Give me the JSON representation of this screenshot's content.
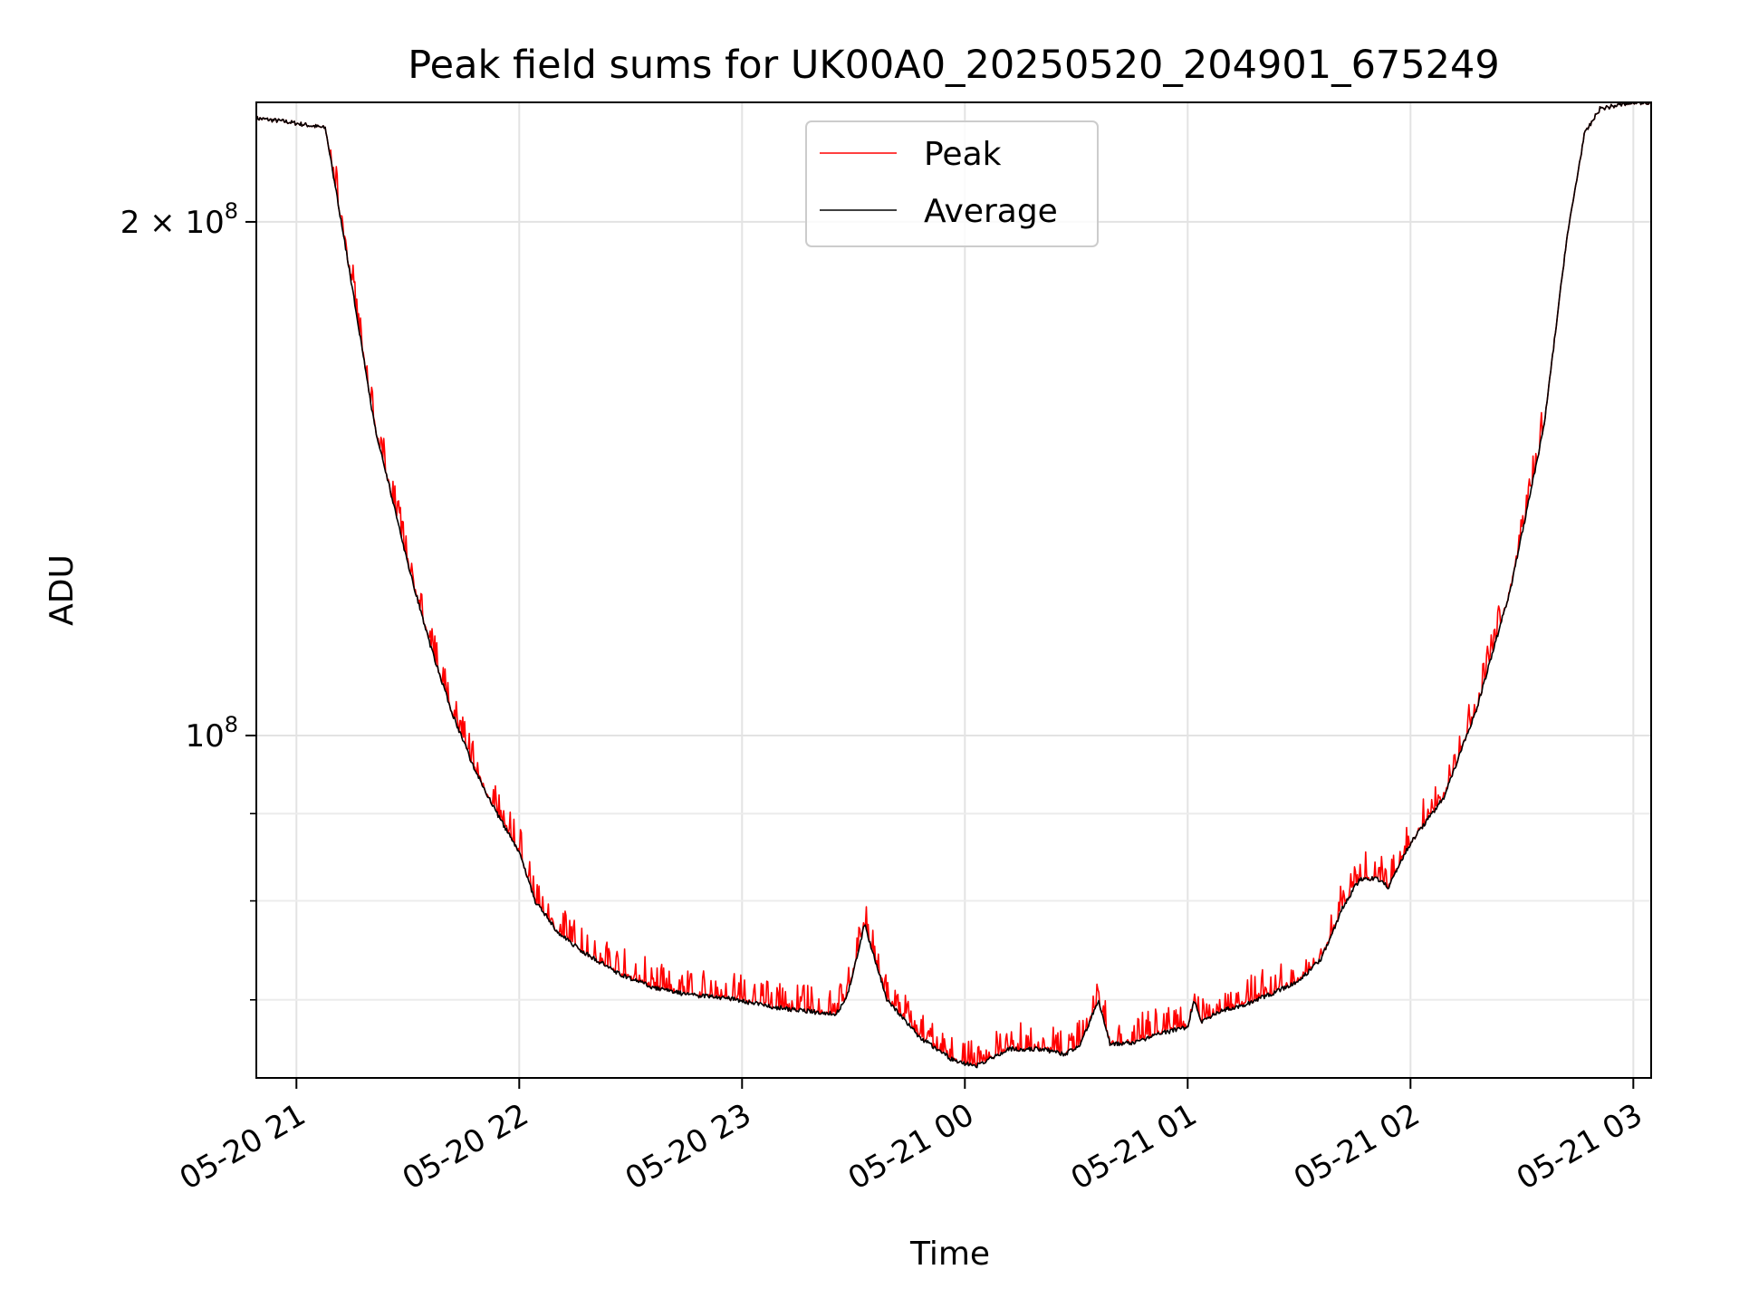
{
  "chart_data": {
    "type": "line",
    "title": "Peak field sums for UK00A0_20250520_204901_675249",
    "xlabel": "Time",
    "ylabel": "ADU",
    "yscale": "log",
    "ylim": [
      63000000,
      235000000
    ],
    "xlim_hours": [
      -3.18,
      3.08
    ],
    "grid": true,
    "legend_position": "upper center",
    "x_ticks": [
      {
        "hours": -3,
        "label": "05-20 21"
      },
      {
        "hours": -2,
        "label": "05-20 22"
      },
      {
        "hours": -1,
        "label": "05-20 23"
      },
      {
        "hours": 0,
        "label": "05-21 00"
      },
      {
        "hours": 1,
        "label": "05-21 01"
      },
      {
        "hours": 2,
        "label": "05-21 02"
      },
      {
        "hours": 3,
        "label": "05-21 03"
      }
    ],
    "y_major_ticks": [
      {
        "value": 100000000,
        "base": "10",
        "exp": "8"
      },
      {
        "value": 200000000,
        "mantissa": "2",
        "times": "×",
        "base": "10",
        "exp": "8"
      }
    ],
    "y_minor_ticks": [
      70000000,
      80000000,
      90000000
    ],
    "series": [
      {
        "name": "Peak",
        "color": "#ff0000",
        "role": "peak",
        "noise": true
      },
      {
        "name": "Average",
        "color": "#000000",
        "role": "average",
        "x": [
          -3.18,
          -3.05,
          -2.87,
          -2.77,
          -2.65,
          -2.6,
          -2.5,
          -2.4,
          -2.3,
          -2.2,
          -2.1,
          -2.0,
          -1.93,
          -1.82,
          -1.7,
          -1.55,
          -1.4,
          -1.25,
          -1.05,
          -0.85,
          -0.65,
          -0.58,
          -0.55,
          -0.52,
          -0.45,
          -0.35,
          -0.2,
          -0.05,
          0.05,
          0.2,
          0.35,
          0.45,
          0.52,
          0.56,
          0.6,
          0.65,
          0.75,
          0.9,
          1.0,
          1.03,
          1.06,
          1.15,
          1.25,
          1.4,
          1.5,
          1.6,
          1.7,
          1.77,
          1.85,
          1.9,
          2.0,
          2.15,
          2.3,
          2.45,
          2.6,
          2.7,
          2.78,
          2.85,
          3.0,
          3.08
        ],
        "y": [
          230000000,
          229000000,
          227000000,
          190000000,
          152000000,
          143000000,
          126000000,
          113000000,
          103000000,
          95500000,
          90000000,
          85500000,
          80000000,
          76500000,
          74500000,
          72500000,
          71200000,
          70500000,
          70100000,
          69300000,
          68800000,
          68700000,
          69500000,
          71000000,
          77500000,
          70000000,
          66500000,
          64500000,
          64000000,
          65500000,
          65500000,
          65000000,
          66000000,
          68000000,
          70000000,
          66000000,
          66000000,
          67000000,
          67500000,
          70000000,
          68000000,
          69000000,
          69500000,
          70800000,
          71800000,
          74000000,
          79500000,
          82300000,
          82500000,
          81500000,
          86500000,
          92000000,
          104000000,
          122000000,
          152000000,
          195000000,
          225000000,
          233000000,
          235000000,
          235000000
        ]
      }
    ]
  }
}
